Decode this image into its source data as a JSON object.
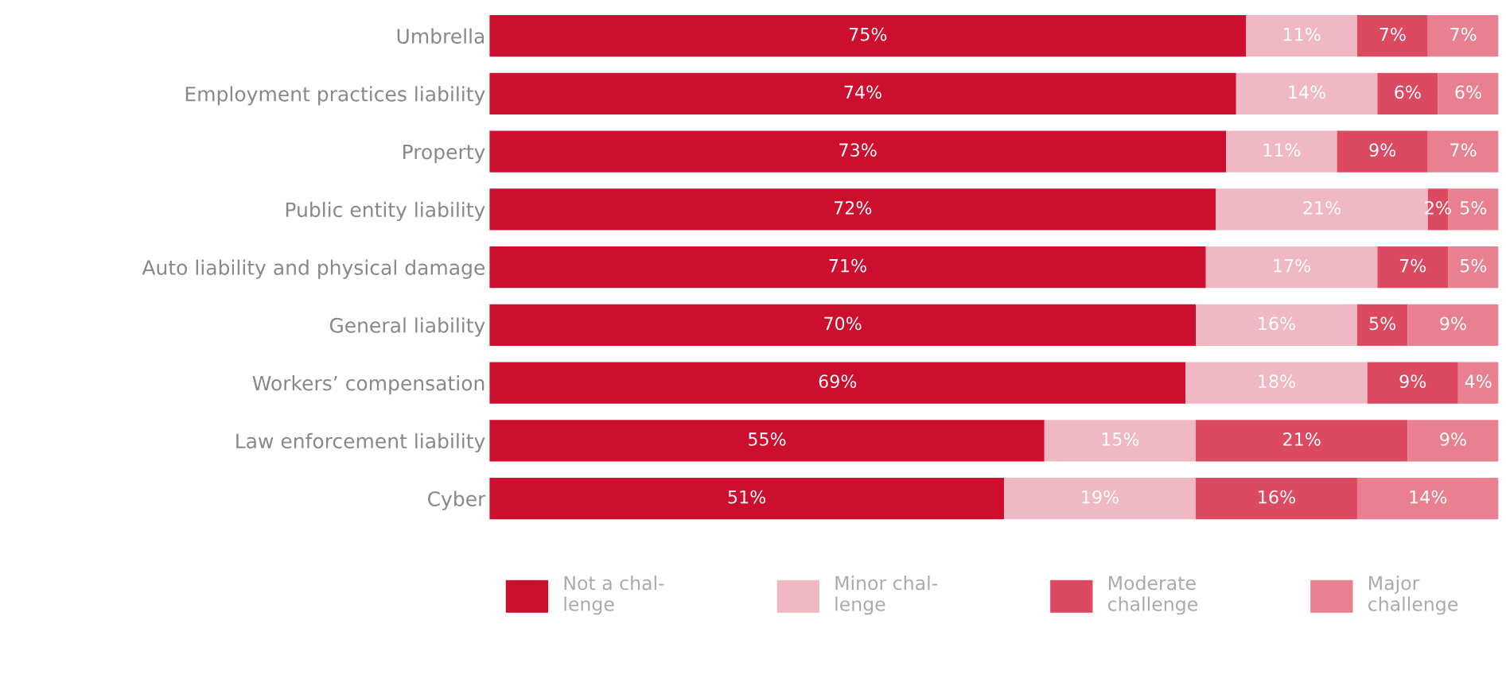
{
  "chart_data": {
    "type": "bar",
    "orientation": "horizontal",
    "stacked": true,
    "legend": "bottom",
    "grid": false,
    "tick_labels": "y",
    "categories": [
      "Umbrella",
      "Employment practices liability",
      "Property",
      "Public entity liability",
      "Auto liability and physical damage",
      "General liability",
      "Workers’ compensation",
      "Law enforcement liability",
      "Cyber"
    ],
    "series": [
      {
        "name": "Not a chal-\nlenge",
        "color": "#cc0e2f",
        "values": [
          75,
          74,
          73,
          72,
          71,
          70,
          69,
          55,
          51
        ],
        "value_labels": [
          "75%",
          "74%",
          "73%",
          "72%",
          "71%",
          "70%",
          "69%",
          "55%",
          "51%"
        ]
      },
      {
        "name": "Minor chal-\nlenge",
        "color": "#f0b8c2",
        "values": [
          11,
          14,
          11,
          21,
          17,
          16,
          18,
          15,
          19
        ],
        "value_labels": [
          "11%",
          "14%",
          "11%",
          "21%",
          "17%",
          "16%",
          "18%",
          "15%",
          "19%"
        ]
      },
      {
        "name": "Moderate\nchallenge",
        "color": "#dc4a62",
        "values": [
          7,
          6,
          9,
          2,
          7,
          5,
          9,
          21,
          16
        ],
        "value_labels": [
          "7%",
          "6%",
          "9%",
          "2%",
          "7%",
          "5%",
          "9%",
          "21%",
          "16%"
        ]
      },
      {
        "name": "Major\nchallenge",
        "color": "#e8808f",
        "values": [
          7,
          6,
          7,
          5,
          5,
          9,
          4,
          9,
          14
        ],
        "value_labels": [
          "7%",
          "6%",
          "7%",
          "5%",
          "5%",
          "9%",
          "4%",
          "9%",
          "14%"
        ]
      }
    ]
  }
}
